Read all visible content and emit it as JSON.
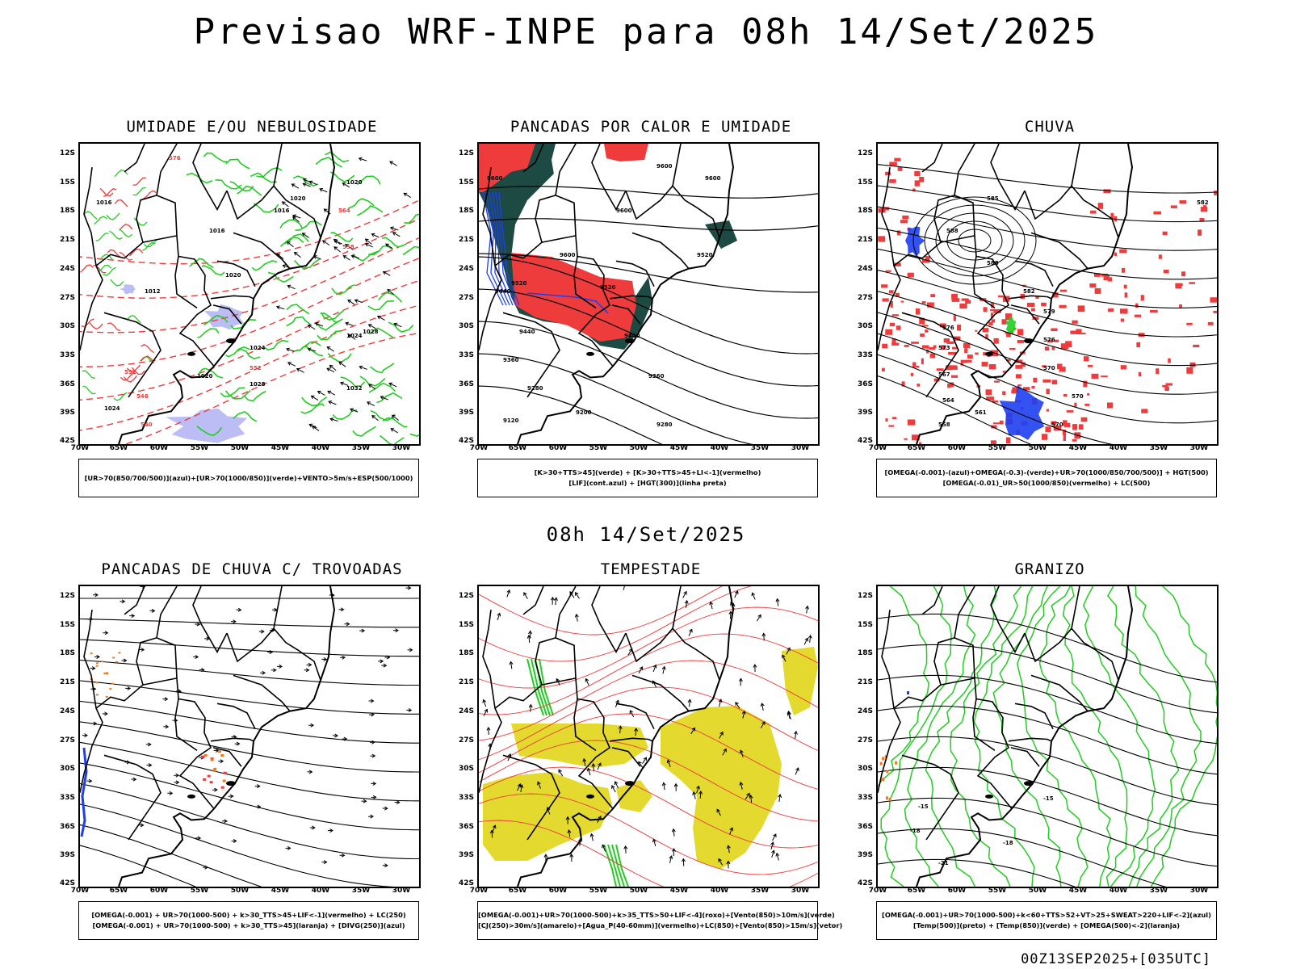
{
  "header": {
    "title": "Previsao WRF-INPE  para 08h 14/Set/2025",
    "subtitle": "08h 14/Set/2025",
    "footer": "00Z13SEP2025+[035UTC]"
  },
  "axes": {
    "lat_labels": [
      "12S",
      "15S",
      "18S",
      "21S",
      "24S",
      "27S",
      "30S",
      "33S",
      "36S",
      "39S",
      "42S"
    ],
    "lon_labels": [
      "70W",
      "65W",
      "60W",
      "55W",
      "50W",
      "45W",
      "40W",
      "35W",
      "30W"
    ]
  },
  "colors": {
    "red": "#ee3b3b",
    "green": "#22cc22",
    "blue": "#1d3ff0",
    "dark_green": "#1e4a44",
    "yellow": "#e3d92f",
    "orange": "#f07a1e",
    "lavender": "#b6b6f4",
    "black": "#000000"
  },
  "panels": [
    {
      "title": "UMIDADE E/OU NEBULOSIDADE",
      "legend": [
        "[UR>70(850/700/500)](azul)+[UR>70(1000/850)](verde)+VENTO>5m/s+ESP(500/1000)"
      ],
      "labels": [
        "1012",
        "1016",
        "1020",
        "1024",
        "1028",
        "1032",
        "576",
        "570",
        "564",
        "558",
        "552",
        "546",
        "540"
      ]
    },
    {
      "title": "PANCADAS POR CALOR E UMIDADE",
      "legend": [
        "[K>30+TTS>45](verde) + [K>30+TTS>45+LI<-1](vermelho)",
        "[LIF](cont.azul) + [HGT(300)](linha preta)"
      ],
      "labels": [
        "9600",
        "9520",
        "9440",
        "9360",
        "9280",
        "9200",
        "9120"
      ]
    },
    {
      "title": "CHUVA",
      "legend": [
        "[OMEGA(-0.001)-(azul)+OMEGA(-0.3)-(verde)+UR>70(1000/850/700/500)] + HGT(500)",
        "[OMEGA(-0.01)_UR>50(1000/850)(vermelho) + LC(500)"
      ],
      "labels": [
        "582",
        "585",
        "588",
        "579",
        "576",
        "573",
        "570",
        "567",
        "564",
        "561",
        "558"
      ]
    },
    {
      "title": "PANCADAS DE CHUVA C/ TROVOADAS",
      "legend": [
        "[OMEGA(-0.001) + UR>70(1000-500) + k>30_TTS>45+LIF<-1](vermelho) + LC(250)",
        "[OMEGA(-0.001) + UR>70(1000-500) + k>30_TTS>45](laranja) + [DIVG(250)](azul)"
      ],
      "labels": []
    },
    {
      "title": "TEMPESTADE",
      "legend": [
        "[OMEGA(-0.001)+UR>70(1000-500)+k>35_TTS>50+LIF<-4](roxo)+[Vento(850)>10m/s](verde)",
        "[CJ(250)>30m/s](amarelo)+[Agua_P(40-60mm)](vermelho)+LC(850)+[Vento(850)>15m/s](vetor)"
      ],
      "labels": []
    },
    {
      "title": "GRANIZO",
      "legend": [
        "[OMEGA(-0.001)+UR>70(1000-500)+k<60+TTS>52+VT>25+SWEAT>220+LIF<-2](azul)",
        "[Temp(500)](preto) + [Temp(850)](verde) + [OMEGA(500)<-2](laranja)"
      ],
      "labels": [
        "-15",
        "-18",
        "-21"
      ]
    }
  ]
}
